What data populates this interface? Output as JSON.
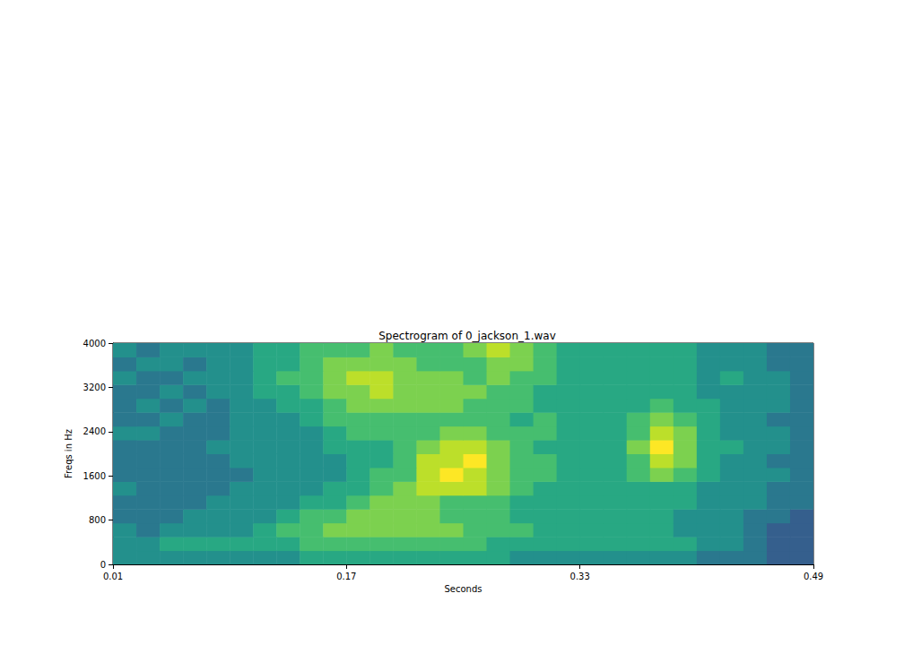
{
  "chart_data": {
    "type": "heatmap",
    "title": "Spectrogram of 0_jackson_1.wav",
    "x_label": "Seconds",
    "y_label": "Freqs in Hz",
    "xlim": [
      0.01,
      0.49
    ],
    "ylim": [
      0,
      4000
    ],
    "xticks": [
      0.01,
      0.17,
      0.33,
      0.49
    ],
    "yticks": [
      0,
      800,
      1600,
      2400,
      3200,
      4000
    ],
    "x_edges": [
      0.01,
      0.026,
      0.042,
      0.058,
      0.074,
      0.09,
      0.106,
      0.122,
      0.138,
      0.154,
      0.17,
      0.186,
      0.202,
      0.218,
      0.234,
      0.25,
      0.266,
      0.282,
      0.298,
      0.314,
      0.33,
      0.346,
      0.362,
      0.378,
      0.394,
      0.41,
      0.426,
      0.442,
      0.458,
      0.474,
      0.49
    ],
    "y_edges": [
      0,
      250,
      500,
      750,
      1000,
      1250,
      1500,
      1750,
      2000,
      2250,
      2500,
      2750,
      3000,
      3250,
      3500,
      3750,
      4000
    ],
    "value_range": [
      0,
      10
    ],
    "cells": [
      [
        5,
        5,
        5,
        5,
        5,
        5,
        5,
        5,
        6,
        6,
        6,
        6,
        6,
        6,
        6,
        6,
        6,
        5,
        5,
        5,
        5,
        5,
        5,
        5,
        5,
        4,
        4,
        4,
        3,
        3
      ],
      [
        5,
        5,
        6,
        6,
        6,
        6,
        6,
        6,
        7,
        7,
        7,
        7,
        7,
        7,
        7,
        7,
        6,
        6,
        6,
        6,
        6,
        6,
        6,
        6,
        6,
        5,
        5,
        4,
        3,
        3
      ],
      [
        5,
        4,
        5,
        5,
        5,
        5,
        6,
        7,
        7,
        8,
        8,
        8,
        8,
        8,
        8,
        7,
        7,
        7,
        6,
        6,
        6,
        6,
        6,
        6,
        5,
        5,
        5,
        4,
        3,
        3
      ],
      [
        4,
        4,
        4,
        5,
        5,
        5,
        5,
        6,
        7,
        7,
        8,
        8,
        8,
        8,
        7,
        7,
        7,
        6,
        6,
        6,
        6,
        6,
        6,
        6,
        5,
        5,
        5,
        4,
        4,
        3
      ],
      [
        4,
        4,
        4,
        4,
        5,
        5,
        5,
        5,
        6,
        6,
        7,
        8,
        8,
        8,
        7,
        7,
        7,
        6,
        6,
        6,
        6,
        6,
        6,
        6,
        6,
        5,
        5,
        5,
        4,
        4
      ],
      [
        5,
        4,
        4,
        4,
        4,
        5,
        5,
        5,
        5,
        6,
        6,
        7,
        8,
        9,
        9,
        9,
        8,
        7,
        6,
        6,
        6,
        6,
        6,
        6,
        6,
        5,
        5,
        5,
        4,
        4
      ],
      [
        4,
        4,
        4,
        4,
        4,
        4,
        5,
        5,
        5,
        5,
        6,
        7,
        7,
        9,
        10,
        9,
        8,
        7,
        7,
        6,
        6,
        6,
        7,
        8,
        7,
        6,
        5,
        5,
        5,
        4
      ],
      [
        4,
        4,
        4,
        4,
        4,
        5,
        5,
        5,
        5,
        5,
        6,
        6,
        7,
        9,
        9,
        10,
        8,
        7,
        7,
        6,
        6,
        6,
        7,
        9,
        8,
        6,
        5,
        5,
        4,
        4
      ],
      [
        4,
        4,
        4,
        4,
        5,
        5,
        5,
        5,
        5,
        6,
        6,
        6,
        7,
        8,
        9,
        9,
        8,
        7,
        6,
        6,
        6,
        6,
        8,
        10,
        8,
        6,
        6,
        5,
        5,
        4
      ],
      [
        5,
        5,
        4,
        4,
        4,
        5,
        5,
        5,
        5,
        6,
        7,
        7,
        7,
        7,
        8,
        8,
        7,
        7,
        7,
        6,
        6,
        6,
        7,
        9,
        8,
        6,
        5,
        5,
        5,
        4
      ],
      [
        4,
        4,
        5,
        4,
        4,
        5,
        5,
        5,
        6,
        7,
        7,
        7,
        7,
        7,
        7,
        7,
        7,
        6,
        7,
        6,
        6,
        6,
        7,
        8,
        7,
        6,
        5,
        5,
        4,
        4
      ],
      [
        4,
        5,
        4,
        5,
        4,
        5,
        5,
        6,
        6,
        7,
        8,
        8,
        8,
        8,
        8,
        7,
        7,
        7,
        6,
        6,
        6,
        6,
        6,
        7,
        6,
        6,
        5,
        5,
        5,
        4
      ],
      [
        4,
        4,
        5,
        4,
        5,
        5,
        6,
        6,
        7,
        8,
        8,
        9,
        8,
        8,
        8,
        8,
        7,
        7,
        6,
        6,
        6,
        6,
        6,
        6,
        6,
        5,
        5,
        5,
        5,
        4
      ],
      [
        5,
        4,
        4,
        5,
        5,
        5,
        6,
        7,
        7,
        8,
        9,
        9,
        8,
        8,
        8,
        7,
        8,
        7,
        7,
        6,
        6,
        6,
        6,
        6,
        6,
        5,
        6,
        5,
        5,
        4
      ],
      [
        4,
        5,
        5,
        4,
        5,
        5,
        6,
        6,
        7,
        8,
        8,
        8,
        8,
        7,
        7,
        7,
        8,
        8,
        7,
        6,
        6,
        6,
        6,
        6,
        6,
        5,
        5,
        5,
        4,
        4
      ],
      [
        5,
        4,
        5,
        5,
        5,
        5,
        6,
        6,
        7,
        7,
        7,
        8,
        7,
        7,
        7,
        8,
        9,
        8,
        7,
        6,
        6,
        6,
        6,
        6,
        6,
        5,
        5,
        5,
        4,
        4
      ]
    ]
  }
}
